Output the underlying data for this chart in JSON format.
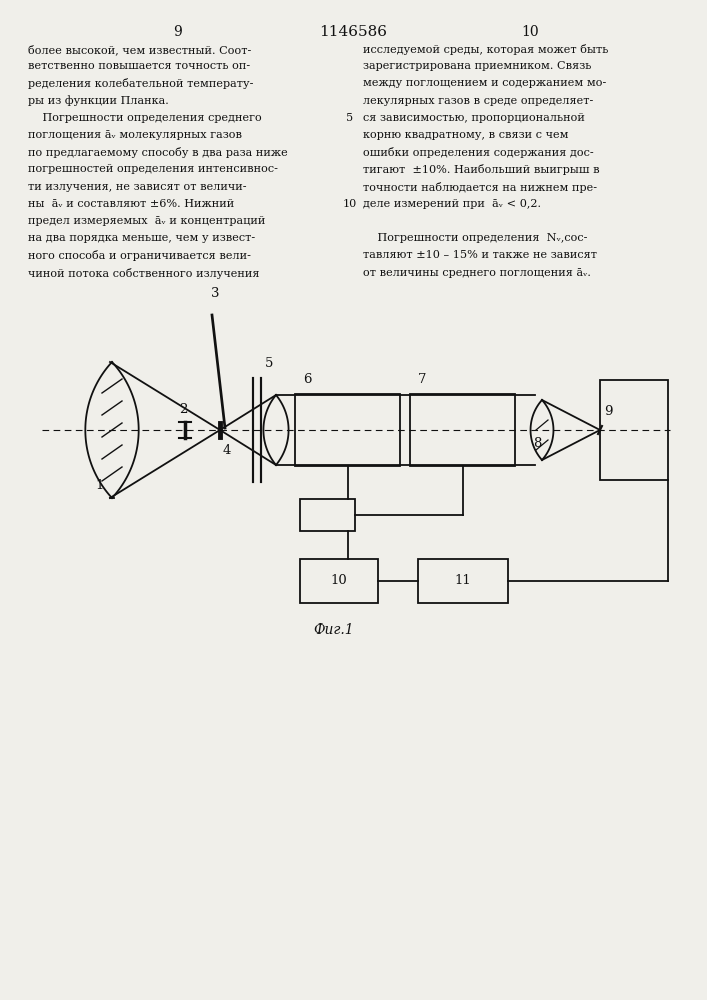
{
  "page_num_left": "9",
  "page_num_center": "1146586",
  "page_num_right": "10",
  "col_left": [
    "более высокой, чем известный. Соот-",
    "ветственно повышается точность оп-",
    "ределения колебательной температу-",
    "ры из функции Планка.",
    "    Погрешности определения среднего",
    "поглощения āᵥ молекулярных газов",
    "по предлагаемому способу в два раза ниже",
    "погрешностей определения интенсивнос-",
    "ти излучения, не зависят от величи-",
    "ны  āᵥ и составляют ±6%. Нижний",
    "предел измеряемых  āᵥ и концентраций",
    "на два порядка меньше, чем у извест-",
    "ного способа и ограничивается вели-",
    "чиной потока собственного излучения"
  ],
  "col_right": [
    "исследуемой среды, которая может быть",
    "зарегистрирована приемником. Связь",
    "между поглощением и содержанием мо-",
    "лекулярных газов в среде определяет-",
    "ся зависимостью, пропорциональной",
    "корню квадратному, в связи с чем",
    "ошибки определения содержания дос-",
    "тигают  ±10%. Наибольший выигрыш в",
    "точности наблюдается на нижнем пре-",
    "деле измерений при  āᵥ < 0,2.",
    "",
    "    Погрешности определения  Nᵥ,сос-",
    "тавляют ±10 – 15% и также не зависят",
    "от величины среднего поглощения āᵥ."
  ],
  "line_number_5": "5",
  "line_number_10": "10",
  "fig_label": "Фиг.1",
  "bg_color": "#f0efea",
  "text_color": "#111111",
  "diagram_color": "#111111"
}
